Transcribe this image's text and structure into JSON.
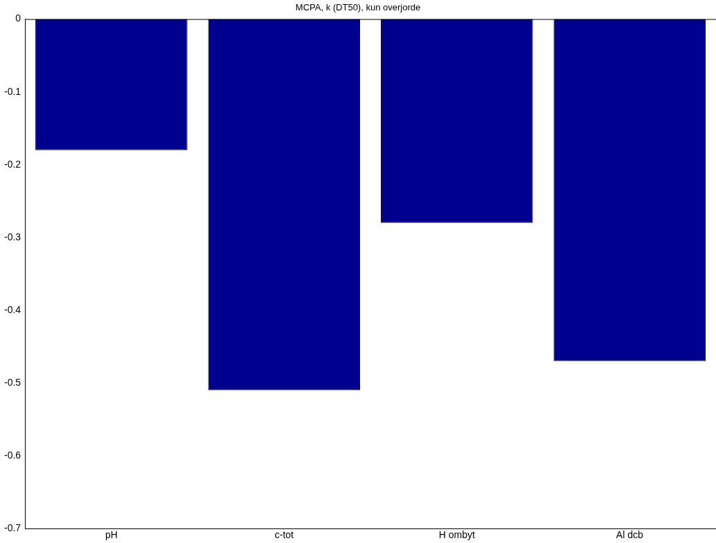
{
  "chart_data": {
    "type": "bar",
    "title": "MCPA, k (DT50), kun overjorde",
    "categories": [
      "pH",
      "c-tot",
      "H ombyt",
      "Al dcb"
    ],
    "values": [
      -0.18,
      -0.51,
      -0.28,
      -0.47
    ],
    "color": "#00008f",
    "ylim": [
      -0.7,
      0
    ],
    "yticks": [
      -0.7,
      -0.6,
      -0.5,
      -0.4,
      -0.3,
      -0.2,
      -0.1,
      0
    ],
    "grid": false,
    "legend": false
  }
}
